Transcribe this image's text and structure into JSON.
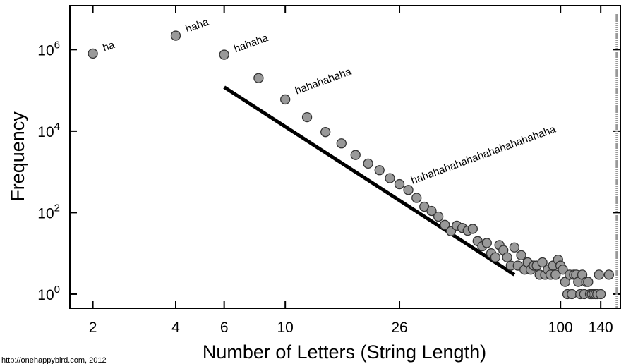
{
  "chart_data": {
    "type": "scatter",
    "title": "",
    "xlabel": "Number of Letters (String Length)",
    "ylabel": "Frequency",
    "xscale": "log",
    "yscale": "log",
    "xlim": [
      1.65,
      165
    ],
    "ylim": [
      0.45,
      12000000
    ],
    "xticks": [
      {
        "value": 2,
        "label": "2"
      },
      {
        "value": 4,
        "label": "4"
      },
      {
        "value": 6,
        "label": "6"
      },
      {
        "value": 10,
        "label": "10"
      },
      {
        "value": 26,
        "label": "26"
      },
      {
        "value": 100,
        "label": "100"
      },
      {
        "value": 140,
        "label": "140"
      }
    ],
    "yticks": [
      {
        "value": 1,
        "base": "10",
        "exp": "0"
      },
      {
        "value": 100,
        "base": "10",
        "exp": "2"
      },
      {
        "value": 10000,
        "base": "10",
        "exp": "4"
      },
      {
        "value": 1000000,
        "base": "10",
        "exp": "6"
      }
    ],
    "grid": false,
    "legend": "none",
    "colors": {
      "point_fill": "#999999",
      "point_stroke": "#333333",
      "line": "#000000",
      "limit_line": "#999999"
    },
    "points": [
      [
        2,
        800000
      ],
      [
        4,
        2200000
      ],
      [
        6,
        750000
      ],
      [
        8,
        200000
      ],
      [
        10,
        60000
      ],
      [
        12,
        22000
      ],
      [
        14,
        9500
      ],
      [
        16,
        5000
      ],
      [
        18,
        2600
      ],
      [
        20,
        1600
      ],
      [
        22,
        1100
      ],
      [
        24,
        700
      ],
      [
        26,
        500
      ],
      [
        28,
        360
      ],
      [
        30,
        230
      ],
      [
        32,
        140
      ],
      [
        34,
        110
      ],
      [
        36,
        80
      ],
      [
        38,
        50
      ],
      [
        40,
        35
      ],
      [
        42,
        48
      ],
      [
        44,
        42
      ],
      [
        46,
        36
      ],
      [
        48,
        40
      ],
      [
        50,
        20
      ],
      [
        52,
        15
      ],
      [
        54,
        18
      ],
      [
        56,
        10
      ],
      [
        58,
        8
      ],
      [
        60,
        16
      ],
      [
        62,
        12
      ],
      [
        64,
        8
      ],
      [
        66,
        5
      ],
      [
        68,
        14
      ],
      [
        70,
        5
      ],
      [
        72,
        9
      ],
      [
        74,
        4
      ],
      [
        76,
        6
      ],
      [
        78,
        4
      ],
      [
        80,
        5
      ],
      [
        82,
        5
      ],
      [
        84,
        3
      ],
      [
        86,
        6
      ],
      [
        88,
        3
      ],
      [
        90,
        4
      ],
      [
        92,
        3
      ],
      [
        94,
        5
      ],
      [
        96,
        3
      ],
      [
        98,
        7
      ],
      [
        100,
        5
      ],
      [
        102,
        4
      ],
      [
        104,
        2
      ],
      [
        106,
        1
      ],
      [
        108,
        3
      ],
      [
        110,
        1
      ],
      [
        112,
        3
      ],
      [
        114,
        3
      ],
      [
        116,
        2
      ],
      [
        118,
        1
      ],
      [
        120,
        3
      ],
      [
        122,
        1
      ],
      [
        124,
        2
      ],
      [
        126,
        2
      ],
      [
        128,
        1
      ],
      [
        130,
        1
      ],
      [
        132,
        1
      ],
      [
        134,
        1
      ],
      [
        136,
        1
      ],
      [
        138,
        3
      ],
      [
        140,
        1
      ],
      [
        150,
        3
      ]
    ],
    "fit_line": {
      "x": [
        6,
        68
      ],
      "y": [
        120000,
        3
      ]
    },
    "limit_line_x": 160,
    "annotations": [
      {
        "text": "ha",
        "x": 2.2,
        "y": 900000
      },
      {
        "text": "haha",
        "x": 4.4,
        "y": 2600000
      },
      {
        "text": "hahaha",
        "x": 6.6,
        "y": 850000
      },
      {
        "text": "hahahahaha",
        "x": 11,
        "y": 80000
      },
      {
        "text": "hahahahahahahahahahahahaha",
        "x": 29,
        "y": 500
      }
    ],
    "credit": "http://onehappybird.com, 2012"
  }
}
